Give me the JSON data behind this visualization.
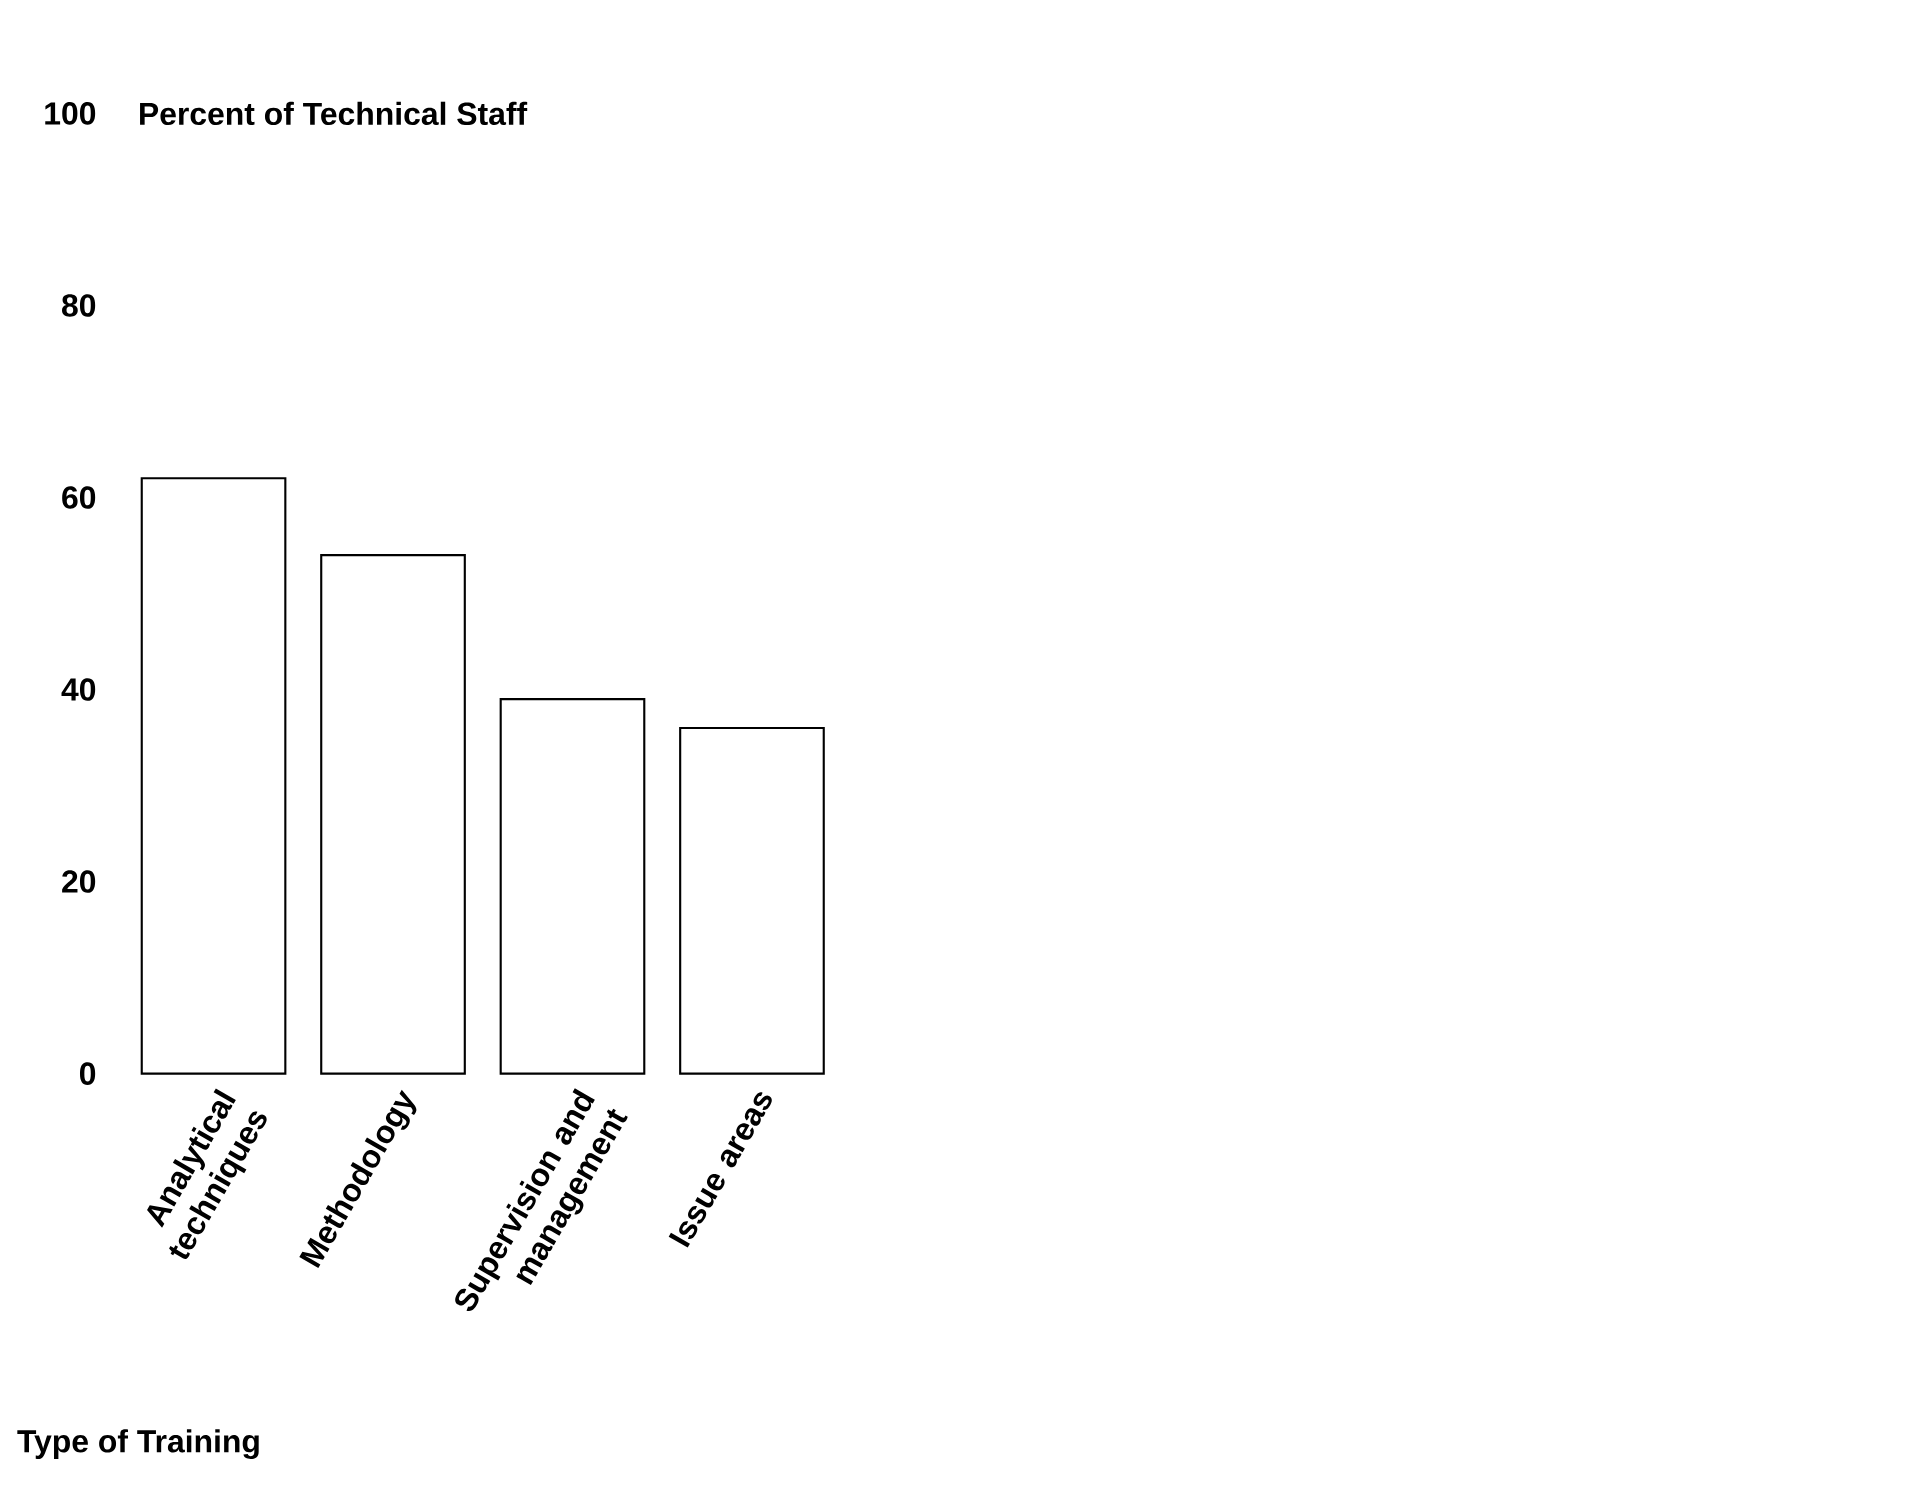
{
  "chart_data": {
    "type": "bar",
    "ylabel": "Percent of Technical Staff",
    "xlabel": "Type of Training",
    "categories": [
      "Analytical techniques",
      "Methodology",
      "Supervision and management",
      "Issue areas"
    ],
    "values": [
      62,
      54,
      39,
      36
    ],
    "color": "#ffffff",
    "ylim": [
      0,
      100
    ],
    "yticks": [
      0,
      20,
      40,
      60,
      80,
      100
    ]
  }
}
